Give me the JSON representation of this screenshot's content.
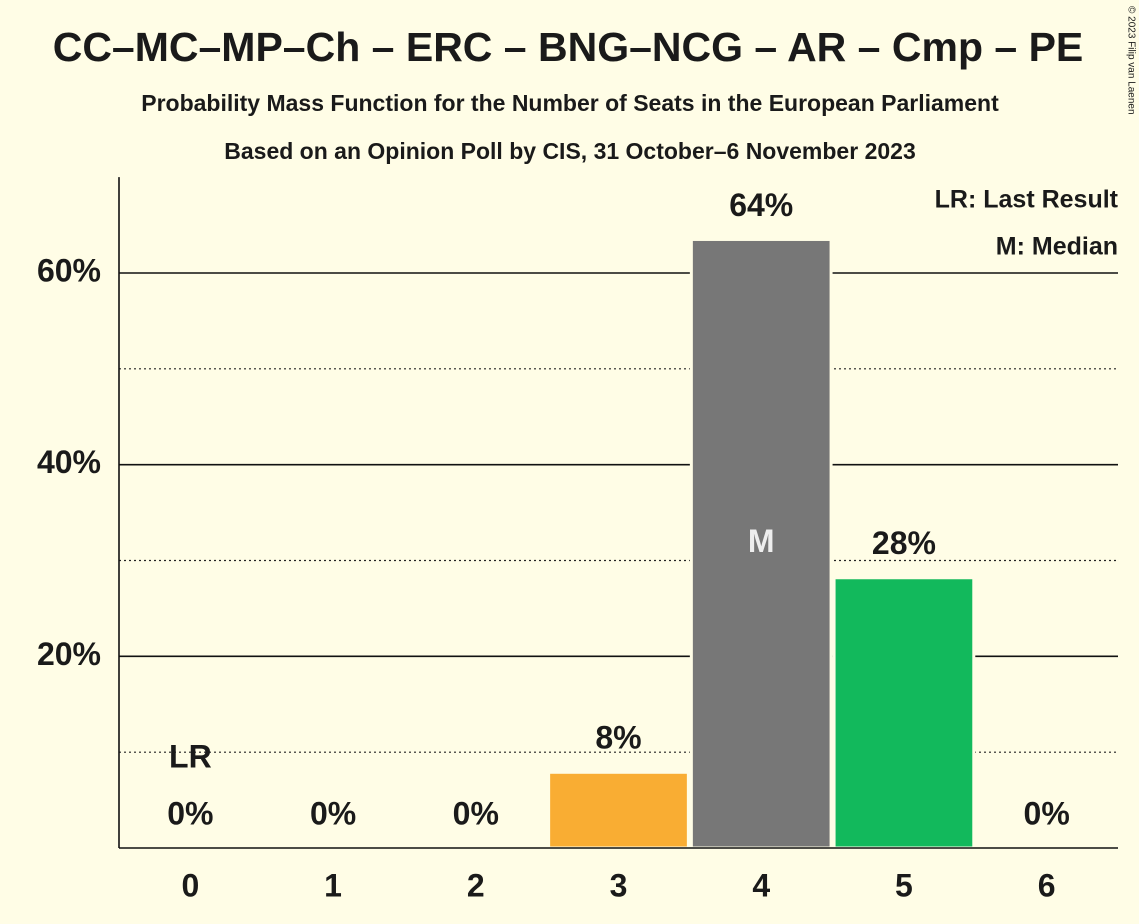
{
  "chart_data": {
    "type": "bar",
    "title": "CC–MC–MP–Ch – ERC – BNG–NCG – AR – Cmp – PE",
    "subtitles": [
      "Probability Mass Function for the Number of Seats in the European Parliament",
      "Based on an Opinion Poll by CIS, 31 October–6 November 2023"
    ],
    "categories": [
      "0",
      "1",
      "2",
      "3",
      "4",
      "5",
      "6"
    ],
    "values": [
      0,
      0,
      0,
      7.9,
      63.5,
      28.2,
      0
    ],
    "value_labels": [
      "0%",
      "0%",
      "0%",
      "8%",
      "64%",
      "28%",
      "0%"
    ],
    "colors": [
      "#f9ad33",
      "#f9ad33",
      "#f9ad33",
      "#f9ad33",
      "#777777",
      "#12b95c",
      "#12b95c"
    ],
    "ylim": [
      0,
      70
    ],
    "yticks": [
      {
        "value": 20,
        "label": "20%"
      },
      {
        "value": 40,
        "label": "40%"
      },
      {
        "value": 60,
        "label": "60%"
      }
    ],
    "minor_yticks": [
      10,
      30,
      50
    ],
    "grid": true,
    "annotations": [
      {
        "text": "LR",
        "category": "0"
      },
      {
        "text": "M",
        "category": "4"
      }
    ],
    "legend": [
      "LR: Last Result",
      "M: Median"
    ],
    "legend_position": "upper right",
    "copyright": "© 2023 Filip van Laenen"
  }
}
